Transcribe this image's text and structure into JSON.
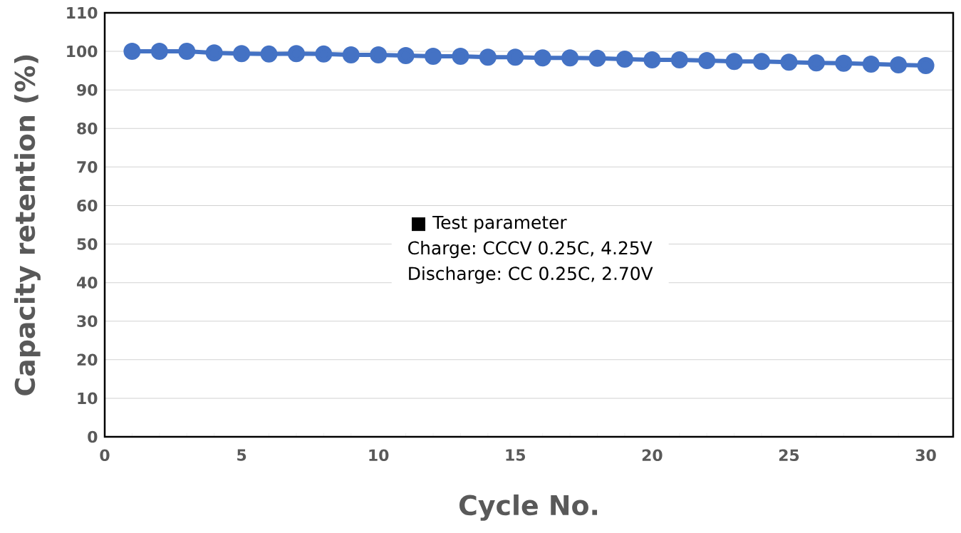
{
  "chart_data": {
    "type": "line",
    "xlabel": "Cycle No.",
    "ylabel": "Capacity retention (%)",
    "x": [
      1,
      2,
      3,
      4,
      5,
      6,
      7,
      8,
      9,
      10,
      11,
      12,
      13,
      14,
      15,
      16,
      17,
      18,
      19,
      20,
      21,
      22,
      23,
      24,
      25,
      26,
      27,
      28,
      29,
      30
    ],
    "series": [
      {
        "color": "#4472c4",
        "values": [
          100,
          100,
          100,
          99.6,
          99.4,
          99.3,
          99.4,
          99.3,
          99.1,
          99.1,
          98.9,
          98.7,
          98.7,
          98.5,
          98.5,
          98.3,
          98.3,
          98.2,
          98.0,
          97.8,
          97.8,
          97.6,
          97.4,
          97.4,
          97.2,
          97.0,
          96.9,
          96.7,
          96.5,
          96.3
        ]
      }
    ],
    "xlim": [
      0,
      31
    ],
    "xticks": [
      0,
      5,
      10,
      15,
      20,
      25,
      30
    ],
    "ylim": [
      0,
      110
    ],
    "yticks": [
      0,
      10,
      20,
      30,
      40,
      50,
      60,
      70,
      80,
      90,
      100,
      110
    ],
    "grid": "y",
    "marker": "circle",
    "line_style": "solid",
    "legend": false,
    "annotations": [
      "■  Test parameter",
      "Charge: CCCV 0.25C, 4.25V",
      "Discharge: CC 0.25C, 2.70V"
    ]
  }
}
